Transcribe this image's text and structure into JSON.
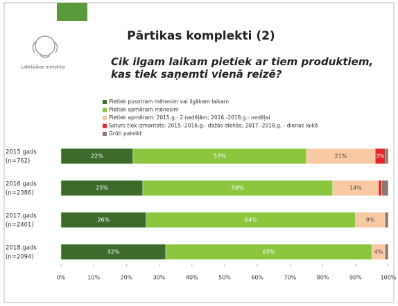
{
  "chart_data": {
    "type": "stacked_barh",
    "title": "Pārtikas komplekti (2)",
    "subtitle": "Cik ilgam laikam pietiek ar tiem produktiem, kas tiek saņemti vienā reizē?",
    "logo_text": "Labklājības ministrija",
    "categories": [
      "2015 gads",
      "2016 gads",
      "2017.gads",
      "2018.gads"
    ],
    "category_notes": [
      "(n=762)",
      "(n=2386)",
      "(n=2401)",
      "(n=2094)"
    ],
    "series": [
      {
        "name": "Pietiek pusotram mēnesim vai ilgākam laikam",
        "color": "#3d6b2c",
        "values": [
          22,
          25,
          26,
          32
        ],
        "value_labels": [
          "22%",
          "25%",
          "26%",
          "32%"
        ]
      },
      {
        "name": "Pietiek apmēram mēnesim",
        "color": "#8cc63f",
        "values": [
          53,
          58,
          64,
          63
        ],
        "value_labels": [
          "53%",
          "58%",
          "64%",
          "63%"
        ]
      },
      {
        "name": "Pietiek apmēram: 2015.g.- 2 nedēļām; 2016.-2018.g.- nedēļai",
        "color": "#f8c9a2",
        "values": [
          21,
          14,
          9,
          4
        ],
        "value_labels": [
          "21%",
          "14%",
          "9%",
          "4%"
        ]
      },
      {
        "name": "Saturs tiek izmantots: 2015.-2016.g.- dažās dienās; 2017.-2018.g. - dienas laikā",
        "color": "#e3262a",
        "values": [
          3,
          1,
          0,
          0
        ],
        "value_labels": [
          "3%",
          null,
          null,
          null
        ]
      },
      {
        "name": "Grūti pateikt",
        "color": "#8a7a70",
        "values": [
          1,
          2,
          1,
          1
        ],
        "value_labels": [
          null,
          null,
          null,
          null
        ]
      }
    ],
    "xlim": [
      0,
      100
    ],
    "xticks": [
      {
        "value": 0,
        "label": "0%"
      },
      {
        "value": 10,
        "label": "10%"
      },
      {
        "value": 20,
        "label": "20%"
      },
      {
        "value": 30,
        "label": "30%"
      },
      {
        "value": 40,
        "label": "40%"
      },
      {
        "value": 50,
        "label": "50%"
      },
      {
        "value": 60,
        "label": "60%"
      },
      {
        "value": 70,
        "label": "70%"
      },
      {
        "value": 80,
        "label": "80%"
      },
      {
        "value": 90,
        "label": "90%"
      },
      {
        "value": 100,
        "label": "100%"
      }
    ]
  }
}
